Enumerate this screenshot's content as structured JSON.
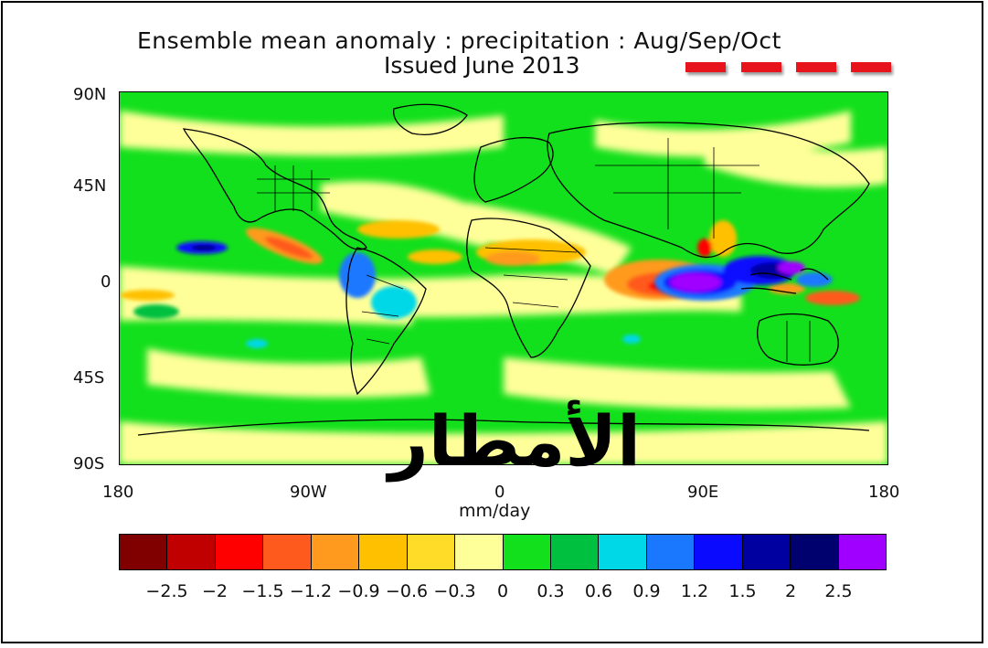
{
  "chart_data": {
    "type": "heatmap",
    "title": "Ensemble mean anomaly : precipitation : Aug/Sep/Oct",
    "subtitle": "Issued June 2013",
    "xlabel": "mm/day",
    "ylabel": "",
    "x_ticks": [
      "180",
      "90W",
      "0",
      "90E",
      "180"
    ],
    "y_ticks": [
      "90N",
      "45N",
      "0",
      "45S",
      "90S"
    ],
    "xlim": [
      -180,
      180
    ],
    "ylim": [
      -90,
      90
    ],
    "overlay_text": "الأمطار",
    "colorbar": {
      "colors": [
        "#800000",
        "#c00000",
        "#ff0000",
        "#ff5a1e",
        "#ff9a1e",
        "#ffc000",
        "#ffdc28",
        "#ffff99",
        "#12e01c",
        "#00c040",
        "#00d8e8",
        "#1a78ff",
        "#0a0aff",
        "#0000a0",
        "#00006e",
        "#a000ff"
      ],
      "tick_labels": [
        "−2.5",
        "−2",
        "−1.5",
        "−1.2",
        "−0.9",
        "−0.6",
        "−0.3",
        "0",
        "0.3",
        "0.6",
        "0.9",
        "1.2",
        "1.5",
        "2",
        "2.5"
      ]
    },
    "anomaly_regions": [
      {
        "lon": 140,
        "lat": -2,
        "value": 2.5
      },
      {
        "lon": 85,
        "lat": -5,
        "value": 2.5
      },
      {
        "lon": 115,
        "lat": 3,
        "value": 2.0
      },
      {
        "lon": 55,
        "lat": 0,
        "value": -1.5
      },
      {
        "lon": -95,
        "lat": 10,
        "value": -1.5
      },
      {
        "lon": -135,
        "lat": 15,
        "value": 1.5
      },
      {
        "lon": -160,
        "lat": 0,
        "value": -0.3
      },
      {
        "lon": -40,
        "lat": 10,
        "value": -0.6
      },
      {
        "lon": 10,
        "lat": 10,
        "value": -0.6
      },
      {
        "lon": -60,
        "lat": -10,
        "value": 1.2
      },
      {
        "lon": 150,
        "lat": -12,
        "value": -1.2
      }
    ],
    "grid": false,
    "legend_position": "bottom"
  }
}
